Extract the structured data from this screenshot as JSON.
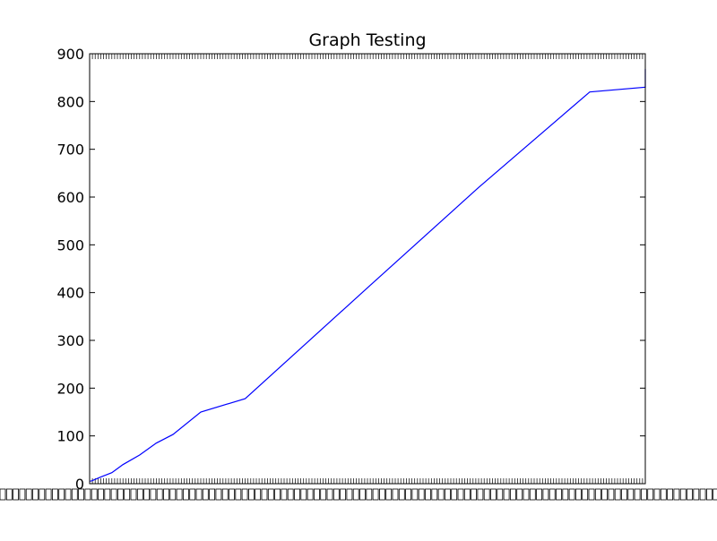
{
  "chart_data": {
    "type": "line",
    "title": "Graph Testing",
    "xlabel": "",
    "ylabel": "",
    "ylim": [
      0,
      900
    ],
    "yticks": [
      0,
      100,
      200,
      300,
      400,
      500,
      600,
      700,
      800,
      900
    ],
    "x_tick_labels_note": "",
    "grid": false,
    "legend": "none",
    "series": [
      {
        "color": "#0000ff",
        "x": [
          0,
          0.004,
          0.02,
          0.04,
          0.06,
          0.09,
          0.12,
          0.15,
          0.2,
          0.28,
          0.5,
          0.7,
          0.9,
          1.0,
          1.0
        ],
        "y": [
          5,
          6,
          14,
          23,
          40,
          60,
          85,
          103,
          150,
          178,
          410,
          620,
          820,
          830,
          868
        ]
      }
    ],
    "x_range": [
      0,
      1
    ]
  }
}
